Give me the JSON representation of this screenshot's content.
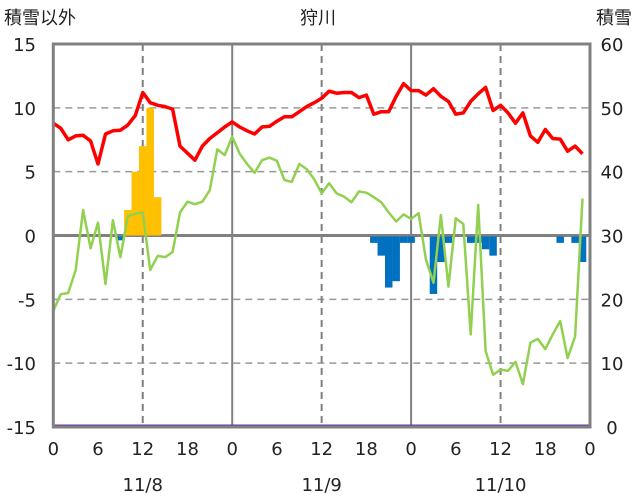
{
  "chart_data": {
    "type": "bar+line",
    "title": "狩川",
    "ylabel_left": "積雪以外",
    "ylabel_right": "積雪",
    "ylim_left": [
      -15,
      15
    ],
    "ylim_right": [
      0,
      60
    ],
    "yticks_left": [
      "-15",
      "-10",
      "-5",
      "0",
      "5",
      "10",
      "15"
    ],
    "yticks_right": [
      "0",
      "10",
      "20",
      "30",
      "40",
      "50",
      "60"
    ],
    "xlim_hours": [
      0,
      72
    ],
    "xticks": [
      "0",
      "6",
      "12",
      "18",
      "0",
      "6",
      "12",
      "18",
      "0",
      "6",
      "12",
      "18",
      "0"
    ],
    "dates": [
      "11/8",
      "11/9",
      "11/10"
    ],
    "grid": true,
    "colors": {
      "red": "#ff0000",
      "green": "#92d050",
      "orange": "#ffc000",
      "blue": "#0070c0",
      "purple": "#7030a0",
      "axis": "#808080"
    },
    "line_red": [
      8.8,
      8.4,
      7.5,
      7.8,
      7.85,
      7.4,
      5.6,
      7.95,
      8.2,
      8.25,
      8.65,
      9.4,
      11.2,
      10.4,
      10.2,
      10.1,
      9.9,
      7.0,
      6.45,
      5.9,
      7.0,
      7.6,
      8.05,
      8.5,
      8.9,
      8.5,
      8.2,
      7.95,
      8.5,
      8.55,
      8.95,
      9.3,
      9.3,
      9.7,
      10.1,
      10.4,
      10.75,
      11.3,
      11.15,
      11.2,
      11.2,
      10.8,
      11.0,
      9.5,
      9.7,
      9.7,
      10.9,
      11.9,
      11.35,
      11.35,
      11.0,
      11.5,
      10.9,
      10.5,
      9.5,
      9.6,
      10.5,
      11.1,
      11.6,
      9.8,
      10.2,
      9.6,
      8.8,
      9.6,
      7.8,
      7.3,
      8.3,
      7.6,
      7.55,
      6.6,
      7.0,
      6.4
    ],
    "line_green": [
      -5.9,
      -4.6,
      -4.5,
      -2.7,
      2.0,
      -1.0,
      1.0,
      -3.8,
      1.2,
      -1.7,
      1.5,
      1.7,
      1.8,
      -2.7,
      -1.6,
      -1.7,
      -1.3,
      1.8,
      2.65,
      2.45,
      2.65,
      3.55,
      6.75,
      6.3,
      7.75,
      6.4,
      5.6,
      4.9,
      5.9,
      6.1,
      5.85,
      4.35,
      4.2,
      5.6,
      5.2,
      4.4,
      3.3,
      4.1,
      3.3,
      3.05,
      2.6,
      3.45,
      3.35,
      3.0,
      2.6,
      1.8,
      1.1,
      1.65,
      1.3,
      1.75,
      -1.9,
      -3.7,
      1.6,
      -4.0,
      1.35,
      0.9,
      -7.75,
      2.4,
      -9.05,
      -10.9,
      -10.5,
      -10.6,
      -9.9,
      -11.65,
      -8.4,
      -8.1,
      -8.9,
      -7.75,
      -6.7,
      -9.6,
      -7.9,
      2.9
    ],
    "bars_orange": [
      {
        "hour": 10,
        "value": 2.0
      },
      {
        "hour": 11,
        "value": 5.0
      },
      {
        "hour": 12,
        "value": 7.0
      },
      {
        "hour": 13,
        "value": 10.0
      },
      {
        "hour": 14,
        "value": 3.0
      }
    ],
    "bars_blue": [
      {
        "hour": 9,
        "value": -0.3
      },
      {
        "hour": 43,
        "value": -0.5
      },
      {
        "hour": 44,
        "value": -1.5
      },
      {
        "hour": 45,
        "value": -4.0
      },
      {
        "hour": 46,
        "value": -3.5
      },
      {
        "hour": 47,
        "value": -0.5
      },
      {
        "hour": 48,
        "value": -0.5
      },
      {
        "hour": 51,
        "value": -4.5
      },
      {
        "hour": 52,
        "value": -2.0
      },
      {
        "hour": 53,
        "value": -0.5
      },
      {
        "hour": 56,
        "value": -0.5
      },
      {
        "hour": 57,
        "value": -0.5
      },
      {
        "hour": 58,
        "value": -1.0
      },
      {
        "hour": 59,
        "value": -1.5
      },
      {
        "hour": 68,
        "value": -0.5
      },
      {
        "hour": 70,
        "value": -0.5
      },
      {
        "hour": 71,
        "value": -2.0
      }
    ],
    "line_purple_right_axis": 0
  }
}
